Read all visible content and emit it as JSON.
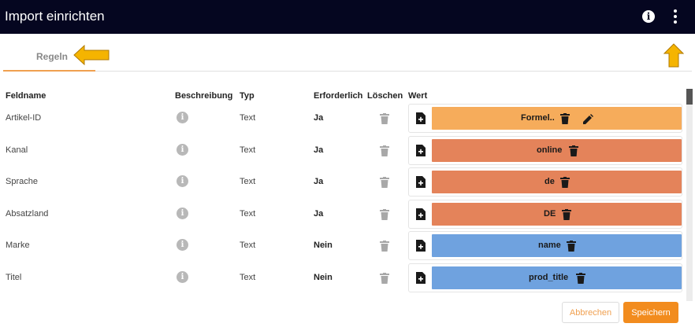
{
  "header": {
    "title": "Import einrichten",
    "info_icon": "info-icon",
    "menu_icon": "more-vert-icon"
  },
  "tabs": {
    "active_label": "Regeln"
  },
  "columns": {
    "feldname": "Feldname",
    "beschreibung": "Beschreibung",
    "typ": "Typ",
    "erforderlich": "Erforderlich",
    "loeschen": "Löschen",
    "wert": "Wert"
  },
  "rows": [
    {
      "feldname": "Artikel-ID",
      "typ": "Text",
      "erforderlich": "Ja",
      "wert": "Formel..",
      "wert_color": "#f6ac5b",
      "editable": true
    },
    {
      "feldname": "Kanal",
      "typ": "Text",
      "erforderlich": "Ja",
      "wert": "online",
      "wert_color": "#e4835a"
    },
    {
      "feldname": "Sprache",
      "typ": "Text",
      "erforderlich": "Ja",
      "wert": "de",
      "wert_color": "#e4835a"
    },
    {
      "feldname": "Absatzland",
      "typ": "Text",
      "erforderlich": "Ja",
      "wert": "DE",
      "wert_color": "#e4835a"
    },
    {
      "feldname": "Marke",
      "typ": "Text",
      "erforderlich": "Nein",
      "wert": "name",
      "wert_color": "#6fa2df"
    },
    {
      "feldname": "Titel",
      "typ": "Text",
      "erforderlich": "Nein",
      "wert": "prod_title",
      "wert_color": "#6fa2df"
    }
  ],
  "footer": {
    "cancel_label": "Abbrechen",
    "save_label": "Speichern"
  },
  "colors": {
    "accent": "#f28c1e",
    "header_bg": "#050620",
    "arrow": "#f5b400"
  }
}
